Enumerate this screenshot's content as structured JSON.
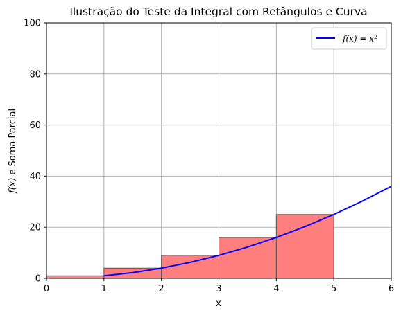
{
  "chart_data": {
    "type": "bar",
    "title": "Ilustração do Teste da Integral com Retângulos e Curva",
    "xlabel": "x",
    "ylabel": "f(x) e Soma Parcial",
    "ylabel_parts": {
      "math": "f(x)",
      "rest": " e Soma Parcial"
    },
    "xlim": [
      0,
      6
    ],
    "ylim": [
      0,
      100
    ],
    "xticks": [
      0,
      1,
      2,
      3,
      4,
      5,
      6
    ],
    "yticks": [
      0,
      20,
      40,
      60,
      80,
      100
    ],
    "grid": true,
    "legend_position": "top-right",
    "rectangles": [
      {
        "x_start": 0,
        "x_end": 1,
        "height": 1
      },
      {
        "x_start": 1,
        "x_end": 2,
        "height": 4
      },
      {
        "x_start": 2,
        "x_end": 3,
        "height": 9
      },
      {
        "x_start": 3,
        "x_end": 4,
        "height": 16
      },
      {
        "x_start": 4,
        "x_end": 5,
        "height": 25
      }
    ],
    "series": [
      {
        "name": "f(x) = x²",
        "legend_parts": {
          "lhs": "f(x) = x",
          "sup": "2"
        },
        "x": [
          1,
          1.5,
          2,
          2.5,
          3,
          3.5,
          4,
          4.5,
          5,
          5.5,
          6
        ],
        "y": [
          1,
          2.25,
          4,
          6.25,
          9,
          12.25,
          16,
          20.25,
          25,
          30.25,
          36
        ]
      }
    ],
    "colors": {
      "rect_fill": "#ff7f7f",
      "rect_edge": "#555555",
      "curve": "#0000ff",
      "grid": "#b0b0b0"
    }
  }
}
